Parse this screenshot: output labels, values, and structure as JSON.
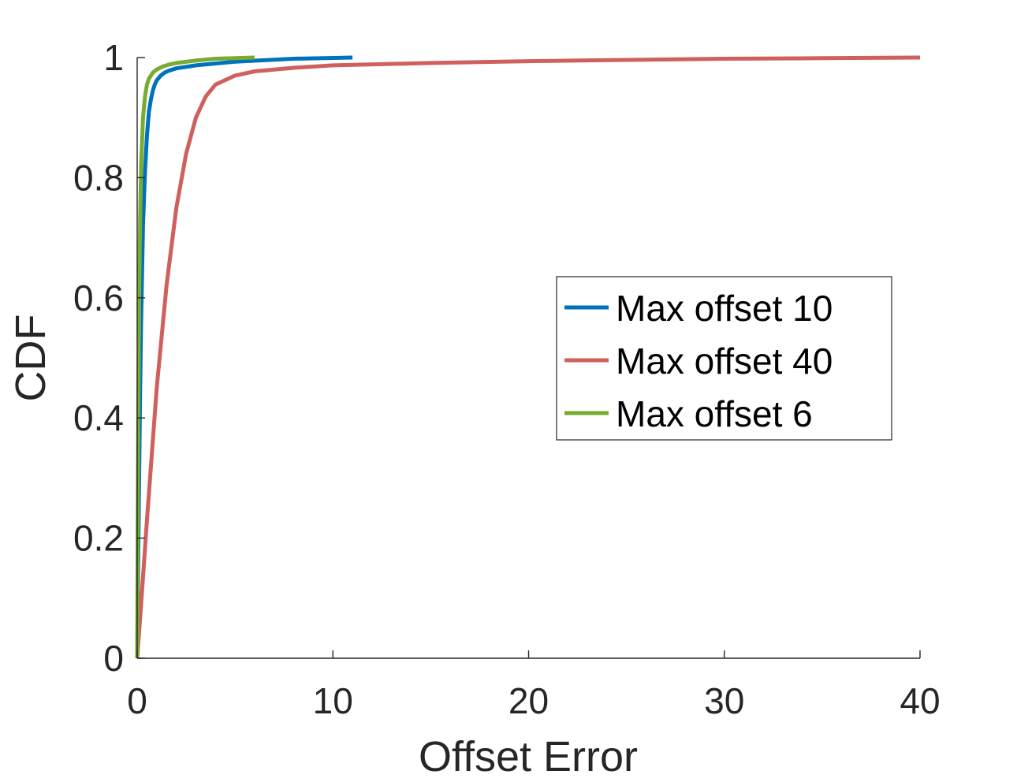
{
  "chart_data": {
    "type": "line",
    "title": "",
    "xlabel": "Offset Error",
    "ylabel": "CDF",
    "xlim": [
      0,
      40
    ],
    "ylim": [
      0,
      1
    ],
    "xticks": [
      0,
      10,
      20,
      30,
      40
    ],
    "yticks": [
      0,
      0.2,
      0.4,
      0.6,
      0.8,
      1
    ],
    "xtick_labels": [
      "0",
      "10",
      "20",
      "30",
      "40"
    ],
    "ytick_labels": [
      "0",
      "0.2",
      "0.4",
      "0.6",
      "0.8",
      "1"
    ],
    "grid": false,
    "legend_position": "right",
    "series": [
      {
        "name": "Max offset 10",
        "color": "#0072BD",
        "x": [
          0,
          0.05,
          0.1,
          0.15,
          0.2,
          0.3,
          0.4,
          0.5,
          0.6,
          0.7,
          0.8,
          0.9,
          1.0,
          1.2,
          1.4,
          1.6,
          2.0,
          3.0,
          5.0,
          8.0,
          11.0
        ],
        "y": [
          0,
          0.15,
          0.3,
          0.44,
          0.56,
          0.72,
          0.81,
          0.87,
          0.91,
          0.93,
          0.945,
          0.955,
          0.962,
          0.97,
          0.975,
          0.978,
          0.982,
          0.987,
          0.993,
          0.998,
          1.0
        ]
      },
      {
        "name": "Max offset 40",
        "color": "#D0605E",
        "x": [
          0,
          0.2,
          0.5,
          1.0,
          1.5,
          2.0,
          2.5,
          3.0,
          3.5,
          4.0,
          5.0,
          6.0,
          8.0,
          10.0,
          15.0,
          20.0,
          25.0,
          30.0,
          35.0,
          40.0
        ],
        "y": [
          0,
          0.09,
          0.23,
          0.45,
          0.62,
          0.75,
          0.84,
          0.9,
          0.935,
          0.955,
          0.97,
          0.977,
          0.983,
          0.987,
          0.991,
          0.994,
          0.996,
          0.998,
          0.999,
          1.0
        ]
      },
      {
        "name": "Max offset 6",
        "color": "#77AC30",
        "x": [
          0,
          0.03,
          0.06,
          0.1,
          0.15,
          0.2,
          0.3,
          0.4,
          0.5,
          0.6,
          0.8,
          1.0,
          1.3,
          1.6,
          2.0,
          3.0,
          4.0,
          5.0,
          6.0
        ],
        "y": [
          0,
          0.22,
          0.42,
          0.6,
          0.73,
          0.82,
          0.9,
          0.935,
          0.955,
          0.965,
          0.975,
          0.98,
          0.985,
          0.988,
          0.991,
          0.995,
          0.998,
          0.999,
          1.0
        ]
      }
    ]
  }
}
